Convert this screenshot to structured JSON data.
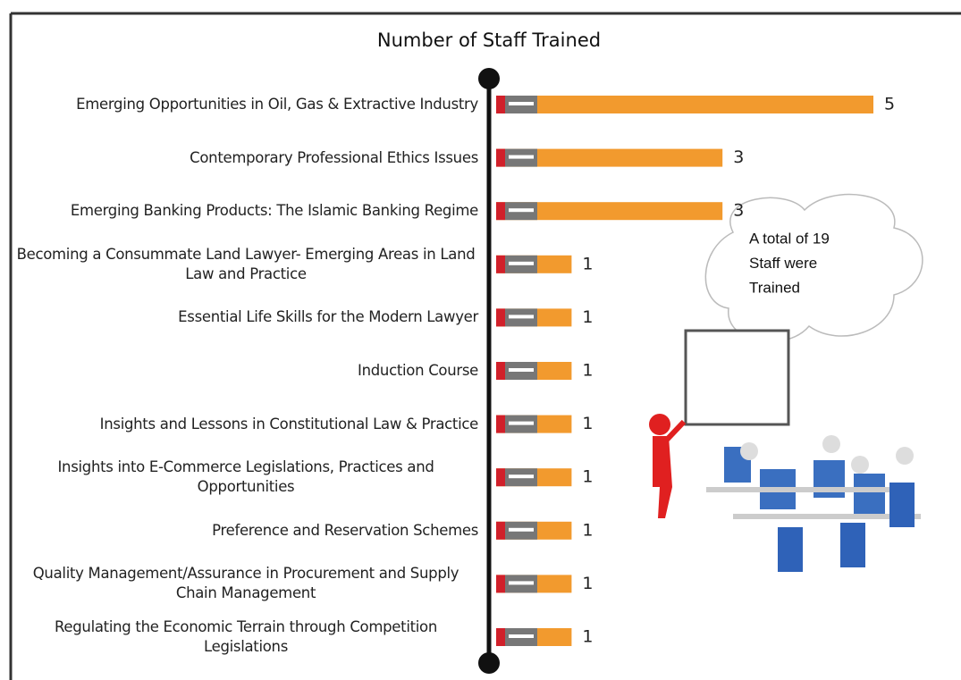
{
  "chart_data": {
    "type": "bar",
    "title": "Number of Staff Trained",
    "categories": [
      "Emerging Opportunities in Oil, Gas & Extractive Industry",
      "Contemporary Professional Ethics Issues",
      "Emerging Banking Products: The Islamic Banking Regime",
      "Becoming a Consummate Land Lawyer- Emerging Areas in Land Law and Practice",
      "Essential Life Skills for the Modern Lawyer",
      "Induction Course",
      "Insights and Lessons in Constitutional Law & Practice",
      "Insights into E-Commerce Legislations, Practices and Opportunities",
      "Preference and Reservation Schemes",
      "Quality Management/Assurance in Procurement and Supply Chain Management",
      "Regulating the Economic Terrain through Competition Legislations"
    ],
    "values": [
      5,
      3,
      3,
      1,
      1,
      1,
      1,
      1,
      1,
      1,
      1
    ],
    "color": "#f29a2e",
    "xlim": [
      0,
      5
    ],
    "annotation": [
      "A total of  19",
      "Staff were",
      "Trained"
    ]
  }
}
